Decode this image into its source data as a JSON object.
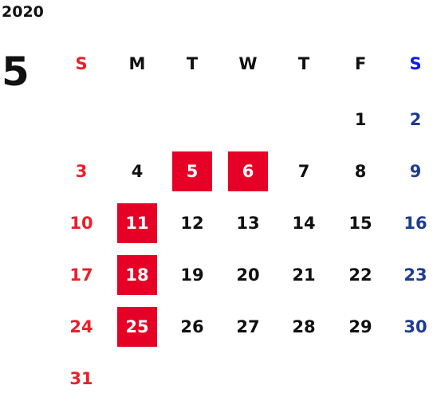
{
  "calendar": {
    "year": "2020",
    "month": "5",
    "weekdays": [
      "S",
      "M",
      "T",
      "W",
      "T",
      "F",
      "S"
    ],
    "weeks": [
      [
        null,
        null,
        null,
        null,
        null,
        1,
        2
      ],
      [
        3,
        4,
        5,
        6,
        7,
        8,
        9
      ],
      [
        10,
        11,
        12,
        13,
        14,
        15,
        16
      ],
      [
        17,
        18,
        19,
        20,
        21,
        22,
        23
      ],
      [
        24,
        25,
        26,
        27,
        28,
        29,
        30
      ],
      [
        31
      ]
    ],
    "highlighted_days": [
      5,
      6,
      11,
      18,
      25
    ]
  }
}
